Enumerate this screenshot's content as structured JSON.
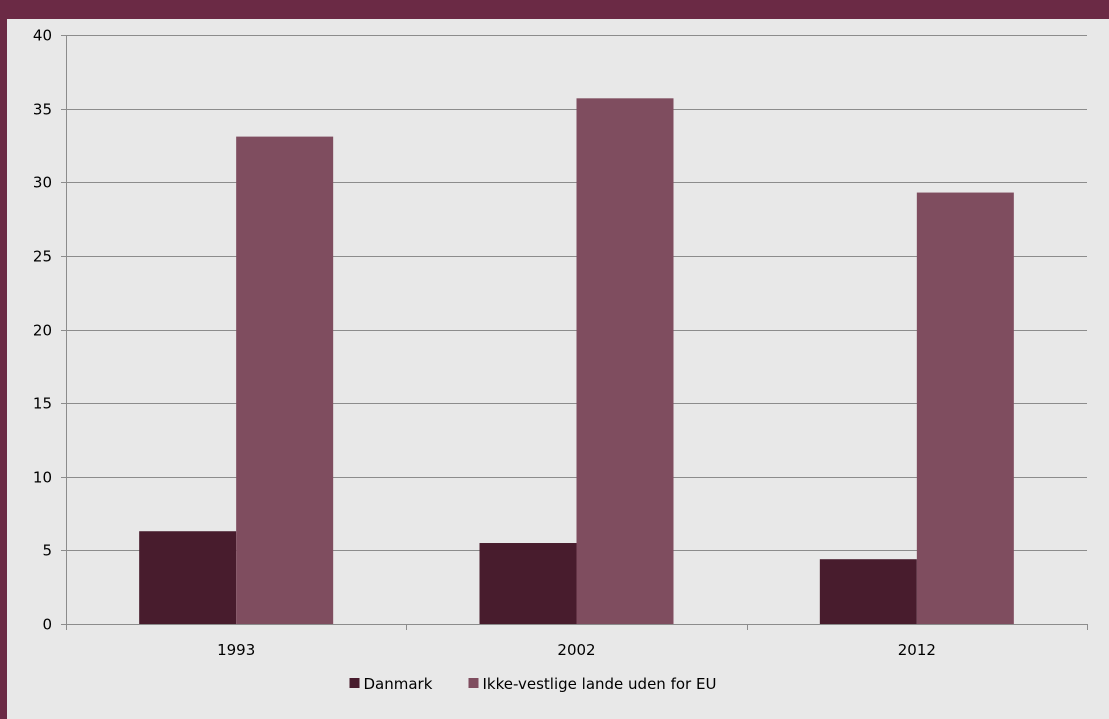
{
  "colors": {
    "frame": "#6b2a45",
    "plot_background": "#e8e8e8",
    "gridline": "#8c8c8c",
    "series_danmark": "#481c2d",
    "series_ikke_vestlige": "#7f4d5f"
  },
  "chart_data": {
    "type": "bar",
    "title": "",
    "xlabel": "",
    "ylabel": "",
    "categories": [
      "1993",
      "2002",
      "2012"
    ],
    "series": [
      {
        "name": "Danmark",
        "values": [
          6.3,
          5.5,
          4.4
        ],
        "color": "#481c2d"
      },
      {
        "name": "Ikke-vestlige lande uden for EU",
        "values": [
          33.1,
          35.7,
          29.3
        ],
        "color": "#7f4d5f"
      }
    ],
    "ylim": [
      0,
      40
    ],
    "yticks": [
      "0",
      "5",
      "10",
      "15",
      "20",
      "25",
      "30",
      "35",
      "40"
    ],
    "grid": true,
    "legend_position": "bottom"
  }
}
